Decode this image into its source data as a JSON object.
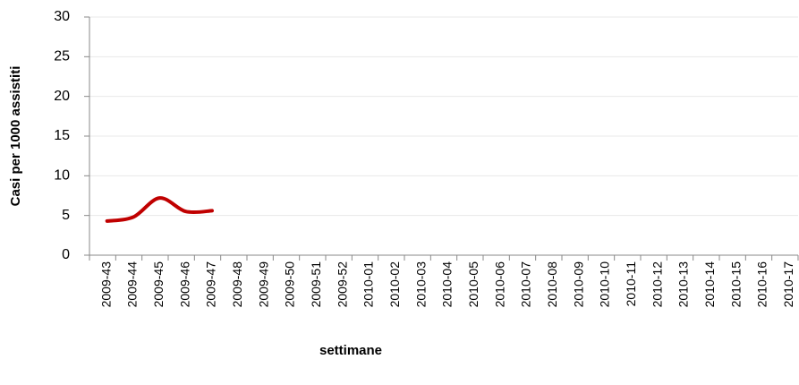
{
  "chart_data": {
    "type": "line",
    "xlabel": "settimane",
    "ylabel": "Casi per 1000 assistiti",
    "categories": [
      "2009-43",
      "2009-44",
      "2009-45",
      "2009-46",
      "2009-47",
      "2009-48",
      "2009-49",
      "2009-50",
      "2009-51",
      "2009-52",
      "2010-01",
      "2010-02",
      "2010-03",
      "2010-04",
      "2010-05",
      "2010-06",
      "2010-07",
      "2010-08",
      "2010-09",
      "2010-10",
      "2010-11",
      "2010-12",
      "2010-13",
      "2010-14",
      "2010-15",
      "2010-16",
      "2010-17"
    ],
    "series": [
      {
        "color": "#c00000",
        "values": [
          4.3,
          4.8,
          7.2,
          5.5,
          5.6,
          null,
          null,
          null,
          null,
          null,
          null,
          null,
          null,
          null,
          null,
          null,
          null,
          null,
          null,
          null,
          null,
          null,
          null,
          null,
          null,
          null,
          null
        ]
      }
    ],
    "ylim": [
      0,
      30
    ],
    "yticks": [
      0,
      5,
      10,
      15,
      20,
      25,
      30
    ],
    "grid": true,
    "smooth": true
  }
}
